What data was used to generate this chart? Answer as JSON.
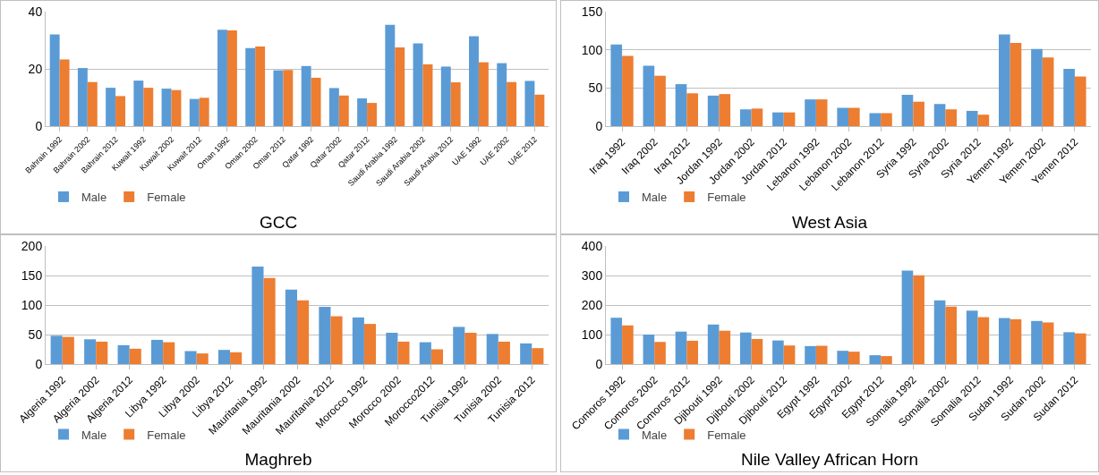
{
  "chart_data": [
    {
      "type": "bar",
      "title": "GCC",
      "categories": [
        "Bahrain 1992",
        "Bahrain 2002",
        "Bahrain 2012",
        "Kuwait 1992",
        "Kuwait 2002",
        "Kuwait 2012",
        "Oman 1992",
        "Oman 2002",
        "Oman 2012",
        "Qatar 1992",
        "Qatar 2002",
        "Qatar 2012",
        "Saudi Arabia 1992",
        "Saudi Arabia 2002",
        "Saudi Arabia 2012",
        "UAE 1992",
        "UAE 2002",
        "UAE 2012"
      ],
      "series": [
        {
          "name": "Male",
          "color": "#5b9bd5",
          "values": [
            32,
            20.3,
            13.4,
            15.9,
            13.1,
            9.5,
            33.7,
            27.3,
            19.5,
            21,
            13.3,
            9.7,
            35.4,
            28.9,
            20.8,
            31.4,
            22,
            15.8
          ]
        },
        {
          "name": "Female",
          "color": "#ed7d31",
          "values": [
            23.3,
            15.4,
            10.5,
            13.4,
            12.6,
            9.9,
            33.4,
            27.8,
            19.6,
            16.9,
            10.7,
            8.1,
            27.5,
            21.6,
            15.3,
            22.3,
            15.4,
            11
          ]
        }
      ],
      "ylim": [
        0,
        40
      ],
      "yticks": [
        0,
        20,
        40
      ],
      "grid": "y",
      "legend": "bottom left"
    },
    {
      "type": "bar",
      "title": "West Asia",
      "categories": [
        "Iraq 1992",
        "Iraq 2002",
        "Iraq 2012",
        "Jordan 1992",
        "Jordan 2002",
        "Jordan 2012",
        "Lebanon 1992",
        "Lebanon 2002",
        "Lebanon 2012",
        "Syria 1992",
        "Syria 2002",
        "Syria 2012",
        "Yemen 1992",
        "Yemen 2002",
        "Yemen 2012"
      ],
      "series": [
        {
          "name": "Male",
          "color": "#5b9bd5",
          "values": [
            107,
            79,
            55,
            40,
            22,
            18,
            35,
            24,
            17,
            41,
            29,
            20,
            120,
            101,
            75
          ]
        },
        {
          "name": "Female",
          "color": "#ed7d31",
          "values": [
            92,
            66,
            43,
            42,
            23,
            18,
            35,
            24,
            17,
            32,
            22,
            15,
            109,
            90,
            65
          ]
        }
      ],
      "ylim": [
        0,
        150
      ],
      "yticks": [
        0,
        50,
        100,
        150
      ],
      "grid": "y",
      "legend": "bottom left"
    },
    {
      "type": "bar",
      "title": "Maghreb",
      "categories": [
        "Algeria 1992",
        "Algeria 2002",
        "Algeria 2012",
        "Libya 1992",
        "Libya 2002",
        "Libya 2012",
        "Mauritania 1992",
        "Mauritania 2002",
        "Mauritania 2012",
        "Morocco 1992",
        "Morocco 2002",
        "Morocco2012",
        "Tunisia 1992",
        "Tunisia 2002",
        "Tunisia 2012"
      ],
      "series": [
        {
          "name": "Male",
          "color": "#5b9bd5",
          "values": [
            48,
            42,
            32,
            41,
            22,
            24,
            165,
            126,
            97,
            79,
            53,
            37,
            63,
            51,
            35
          ]
        },
        {
          "name": "Female",
          "color": "#ed7d31",
          "values": [
            46,
            38,
            26,
            37,
            18,
            20,
            146,
            108,
            81,
            68,
            38,
            25,
            53,
            38,
            27
          ]
        }
      ],
      "ylim": [
        0,
        200
      ],
      "yticks": [
        0,
        50,
        100,
        150,
        200
      ],
      "grid": "y",
      "legend": "bottom left"
    },
    {
      "type": "bar",
      "title": "Nile Valley African Horn",
      "categories": [
        "Comoros 1992",
        "Comoros 2002",
        "Comoros 2012",
        "Djibouti 1992",
        "Djibouti 2002",
        "Djibouti 2012",
        "Egypt 1992",
        "Egypt 2002",
        "Egypt 2012",
        "Somalia 1992",
        "Somalia 2002",
        "Somalia 2012",
        "Sudan 1992",
        "Sudan 2002",
        "Sudan 2012"
      ],
      "series": [
        {
          "name": "Male",
          "color": "#5b9bd5",
          "values": [
            157,
            100,
            110,
            134,
            107,
            80,
            61,
            45,
            30,
            317,
            216,
            181,
            156,
            146,
            108
          ]
        },
        {
          "name": "Female",
          "color": "#ed7d31",
          "values": [
            131,
            75,
            79,
            113,
            85,
            63,
            62,
            42,
            27,
            301,
            195,
            159,
            152,
            141,
            104
          ]
        }
      ],
      "ylim": [
        0,
        400
      ],
      "yticks": [
        0,
        100,
        200,
        300,
        400
      ],
      "grid": "y",
      "legend": "bottom left"
    }
  ]
}
